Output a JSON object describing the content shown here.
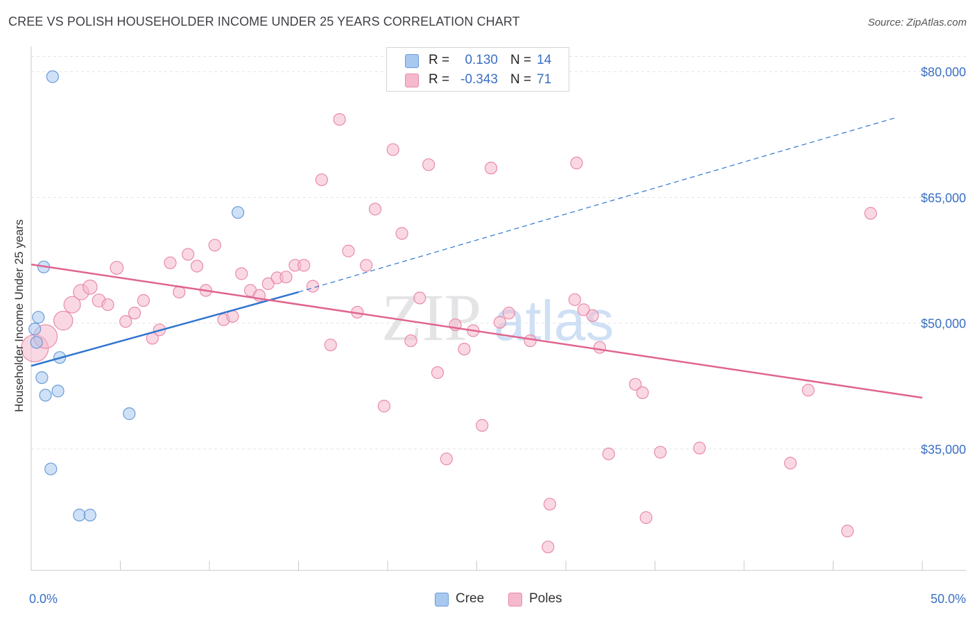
{
  "title": "CREE VS POLISH HOUSEHOLDER INCOME UNDER 25 YEARS CORRELATION CHART",
  "source": "Source: ZipAtlas.com",
  "watermark": {
    "zip": "ZIP",
    "atlas": "atlas"
  },
  "legend_top": {
    "rows": [
      {
        "r_label": "R =",
        "r_value": "0.130",
        "n_label": "N =",
        "n_value": "14",
        "color": "#a8c8f0"
      },
      {
        "r_label": "R =",
        "r_value": "-0.343",
        "n_label": "N =",
        "n_value": "71",
        "color": "#f5b8cc"
      }
    ]
  },
  "legend_bottom": [
    {
      "label": "Cree",
      "color": "#a8c8f0"
    },
    {
      "label": "Poles",
      "color": "#f5b8cc"
    }
  ],
  "chart_data": {
    "type": "scatter",
    "title": "CREE VS POLISH HOUSEHOLDER INCOME UNDER 25 YEARS CORRELATION CHART",
    "xlabel": "",
    "ylabel": "Householder Income Under 25 years",
    "xlim": [
      0,
      50
    ],
    "ylim": [
      20500,
      83000
    ],
    "x_tick_labels": [
      "0.0%",
      "50.0%"
    ],
    "y_ticks": [
      35000,
      50000,
      65000,
      80000
    ],
    "y_tick_labels": [
      "$35,000",
      "$50,000",
      "$65,000",
      "$80,000"
    ],
    "grid": true,
    "series": [
      {
        "name": "Cree",
        "color": "#a8c8f0",
        "stroke": "#6b9bd8",
        "trend": {
          "x0": 0,
          "y0": 44900,
          "x1": 15,
          "y1": 53700,
          "dash_to_x": 48.5,
          "dash_to_y": 74500,
          "color": "#2f74d0"
        },
        "points": [
          {
            "x": 1.2,
            "y": 79400,
            "s": 1
          },
          {
            "x": 11.6,
            "y": 63200,
            "s": 1
          },
          {
            "x": 0.7,
            "y": 56700,
            "s": 1
          },
          {
            "x": 0.4,
            "y": 50700,
            "s": 1
          },
          {
            "x": 0.2,
            "y": 49300,
            "s": 1
          },
          {
            "x": 0.3,
            "y": 47700,
            "s": 1
          },
          {
            "x": 1.6,
            "y": 45900,
            "s": 1
          },
          {
            "x": 0.6,
            "y": 43500,
            "s": 1
          },
          {
            "x": 0.8,
            "y": 41400,
            "s": 1
          },
          {
            "x": 1.5,
            "y": 41900,
            "s": 1
          },
          {
            "x": 5.5,
            "y": 39200,
            "s": 1
          },
          {
            "x": 1.1,
            "y": 32600,
            "s": 1
          },
          {
            "x": 2.7,
            "y": 27100,
            "s": 1
          },
          {
            "x": 3.3,
            "y": 27100,
            "s": 1
          }
        ]
      },
      {
        "name": "Poles",
        "color": "#f5b8cc",
        "stroke": "#e88aa8",
        "trend": {
          "x0": 0,
          "y0": 57000,
          "x1": 50,
          "y1": 41100,
          "color": "#e0648f"
        },
        "points": [
          {
            "x": 0.2,
            "y": 47000,
            "s": 2.3
          },
          {
            "x": 0.8,
            "y": 48400,
            "s": 2
          },
          {
            "x": 1.8,
            "y": 50300,
            "s": 1.6
          },
          {
            "x": 2.3,
            "y": 52200,
            "s": 1.4
          },
          {
            "x": 2.8,
            "y": 53700,
            "s": 1.3
          },
          {
            "x": 3.3,
            "y": 54300,
            "s": 1.2
          },
          {
            "x": 3.8,
            "y": 52700,
            "s": 1.1
          },
          {
            "x": 4.3,
            "y": 52200,
            "s": 1
          },
          {
            "x": 4.8,
            "y": 56600,
            "s": 1.1
          },
          {
            "x": 5.3,
            "y": 50200,
            "s": 1
          },
          {
            "x": 5.8,
            "y": 51200,
            "s": 1
          },
          {
            "x": 6.3,
            "y": 52700,
            "s": 1
          },
          {
            "x": 6.8,
            "y": 48200,
            "s": 1
          },
          {
            "x": 7.2,
            "y": 49200,
            "s": 1
          },
          {
            "x": 7.8,
            "y": 57200,
            "s": 1
          },
          {
            "x": 8.3,
            "y": 53700,
            "s": 1
          },
          {
            "x": 8.8,
            "y": 58200,
            "s": 1
          },
          {
            "x": 9.3,
            "y": 56800,
            "s": 1
          },
          {
            "x": 9.8,
            "y": 53900,
            "s": 1
          },
          {
            "x": 10.3,
            "y": 59300,
            "s": 1
          },
          {
            "x": 10.8,
            "y": 50400,
            "s": 1
          },
          {
            "x": 11.3,
            "y": 50800,
            "s": 1
          },
          {
            "x": 11.8,
            "y": 55900,
            "s": 1
          },
          {
            "x": 12.3,
            "y": 53900,
            "s": 1
          },
          {
            "x": 12.8,
            "y": 53300,
            "s": 1
          },
          {
            "x": 13.3,
            "y": 54700,
            "s": 1
          },
          {
            "x": 13.8,
            "y": 55400,
            "s": 1
          },
          {
            "x": 14.3,
            "y": 55500,
            "s": 1
          },
          {
            "x": 14.8,
            "y": 56900,
            "s": 1
          },
          {
            "x": 15.3,
            "y": 56900,
            "s": 1
          },
          {
            "x": 15.8,
            "y": 54400,
            "s": 1
          },
          {
            "x": 16.3,
            "y": 67100,
            "s": 1
          },
          {
            "x": 16.8,
            "y": 47400,
            "s": 1
          },
          {
            "x": 17.3,
            "y": 74300,
            "s": 1
          },
          {
            "x": 17.8,
            "y": 58600,
            "s": 1
          },
          {
            "x": 18.3,
            "y": 51300,
            "s": 1
          },
          {
            "x": 18.8,
            "y": 56900,
            "s": 1
          },
          {
            "x": 19.3,
            "y": 63600,
            "s": 1
          },
          {
            "x": 19.8,
            "y": 40100,
            "s": 1
          },
          {
            "x": 20.3,
            "y": 70700,
            "s": 1
          },
          {
            "x": 20.8,
            "y": 60700,
            "s": 1
          },
          {
            "x": 21.3,
            "y": 47900,
            "s": 1
          },
          {
            "x": 21.8,
            "y": 53000,
            "s": 1
          },
          {
            "x": 22.3,
            "y": 68900,
            "s": 1
          },
          {
            "x": 22.8,
            "y": 44100,
            "s": 1
          },
          {
            "x": 23.3,
            "y": 33800,
            "s": 1
          },
          {
            "x": 23.8,
            "y": 49800,
            "s": 1
          },
          {
            "x": 24.3,
            "y": 46900,
            "s": 1
          },
          {
            "x": 24.8,
            "y": 49100,
            "s": 1
          },
          {
            "x": 25.3,
            "y": 37800,
            "s": 1
          },
          {
            "x": 25.8,
            "y": 68500,
            "s": 1
          },
          {
            "x": 26.3,
            "y": 50100,
            "s": 1
          },
          {
            "x": 26.8,
            "y": 51200,
            "s": 1
          },
          {
            "x": 29.0,
            "y": 23300,
            "s": 1
          },
          {
            "x": 29.1,
            "y": 28400,
            "s": 1
          },
          {
            "x": 30.6,
            "y": 69100,
            "s": 1
          },
          {
            "x": 31.0,
            "y": 51600,
            "s": 1
          },
          {
            "x": 31.5,
            "y": 50900,
            "s": 1
          },
          {
            "x": 31.9,
            "y": 47100,
            "s": 1
          },
          {
            "x": 32.4,
            "y": 34400,
            "s": 1
          },
          {
            "x": 33.9,
            "y": 42700,
            "s": 1
          },
          {
            "x": 34.3,
            "y": 41700,
            "s": 1
          },
          {
            "x": 34.5,
            "y": 26800,
            "s": 1
          },
          {
            "x": 35.3,
            "y": 34600,
            "s": 1
          },
          {
            "x": 37.5,
            "y": 35100,
            "s": 1
          },
          {
            "x": 42.6,
            "y": 33300,
            "s": 1
          },
          {
            "x": 43.6,
            "y": 42000,
            "s": 1
          },
          {
            "x": 45.8,
            "y": 25200,
            "s": 1
          },
          {
            "x": 47.1,
            "y": 63100,
            "s": 1
          },
          {
            "x": 30.5,
            "y": 52800,
            "s": 1
          },
          {
            "x": 28.0,
            "y": 47900,
            "s": 1
          }
        ]
      }
    ]
  }
}
